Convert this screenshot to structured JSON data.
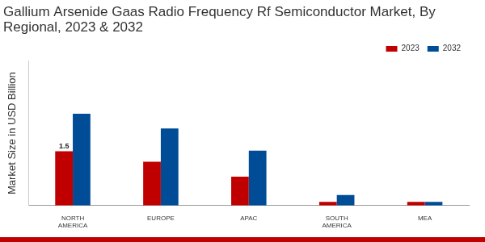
{
  "chart_data": {
    "type": "bar",
    "title": "Gallium Arsenide Gaas Radio Frequency Rf Semiconductor Market, By Regional, 2023 & 2032",
    "y_label": "Market Size in USD Billion",
    "categories": [
      "NORTH AMERICA",
      "EUROPE",
      "APAC",
      "SOUTH AMERICA",
      "MEA"
    ],
    "series": [
      {
        "name": "2023",
        "color": "#c00000",
        "values": [
          1.5,
          1.21,
          0.8,
          0.1,
          0.1
        ],
        "value_labels": [
          "1.5",
          null,
          null,
          null,
          null
        ]
      },
      {
        "name": "2032",
        "color": "#004c97",
        "values": [
          2.54,
          2.13,
          1.52,
          0.29,
          0.1
        ]
      }
    ],
    "ylim": [
      0,
      4
    ],
    "grid": false,
    "legend": "top-right",
    "tick_labels": "x"
  }
}
